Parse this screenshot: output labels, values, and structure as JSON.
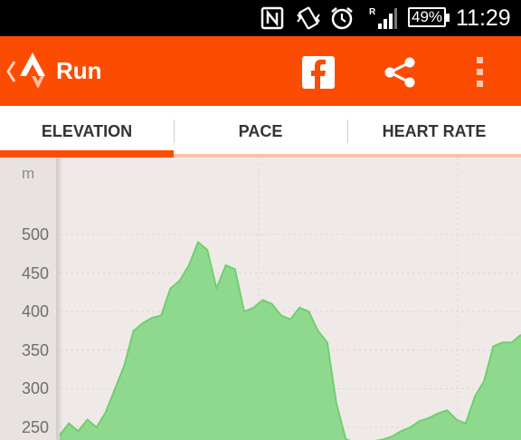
{
  "status_bar": {
    "battery": "49%",
    "time": "11:29",
    "icons": [
      "nfc-icon",
      "vibrate-icon",
      "alarm-icon",
      "signal-roaming-icon"
    ]
  },
  "action_bar": {
    "title": "Run",
    "icons": [
      "back-chevron-icon",
      "strava-logo-icon",
      "facebook-icon",
      "share-icon",
      "overflow-menu-icon"
    ],
    "accent_color": "#fc4c02"
  },
  "tabs": [
    {
      "label": "ELEVATION",
      "selected": true
    },
    {
      "label": "PACE",
      "selected": false
    },
    {
      "label": "HEART RATE",
      "selected": false
    }
  ],
  "chart_data": {
    "type": "area",
    "unit": "m",
    "y_ticks": [
      "500",
      "450",
      "400",
      "350",
      "300",
      "250"
    ],
    "ylim": [
      230,
      500
    ],
    "grid": true,
    "fill_color": "#8fd98f",
    "stroke_color": "#6fcf6f",
    "x": [
      0,
      2,
      4,
      6,
      8,
      10,
      12,
      14,
      16,
      18,
      20,
      22,
      24,
      26,
      28,
      30,
      32,
      34,
      36,
      38,
      40,
      42,
      44,
      46,
      48,
      50,
      52,
      54,
      56,
      58,
      60,
      62,
      64,
      66,
      68,
      70,
      72,
      74,
      76,
      78,
      80,
      82,
      84,
      86,
      88,
      90,
      92,
      94,
      96,
      98,
      100
    ],
    "values": [
      240,
      255,
      245,
      260,
      250,
      270,
      300,
      330,
      375,
      385,
      392,
      395,
      430,
      440,
      460,
      490,
      480,
      430,
      460,
      455,
      400,
      405,
      415,
      410,
      395,
      390,
      405,
      400,
      375,
      360,
      280,
      235,
      230,
      230,
      232,
      234,
      238,
      245,
      250,
      258,
      262,
      268,
      272,
      260,
      255,
      290,
      310,
      355,
      360,
      360,
      370
    ]
  }
}
